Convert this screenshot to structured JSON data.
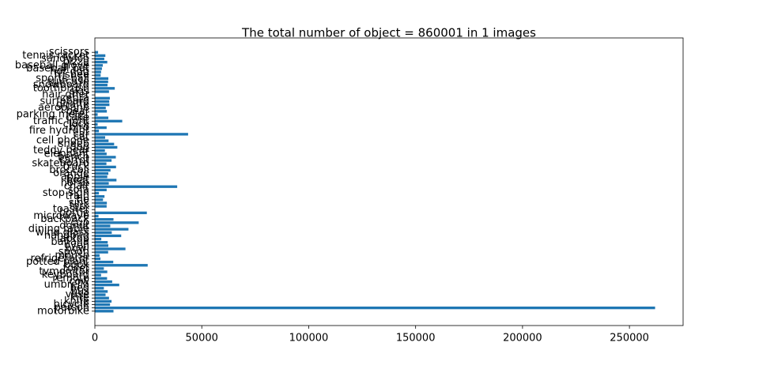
{
  "chart_data": {
    "type": "barh",
    "title": "The total number of object = 860001 in 1 images",
    "color": "#1f77b4",
    "categories": [
      "motorbike",
      "person",
      "bicycle",
      "knife",
      "kite",
      "vase",
      "bus",
      "bed",
      "umbrella",
      "cow",
      "remote",
      "keyboard",
      "tvmonitor",
      "toilet",
      "book",
      "potted plant",
      "refrigerator",
      "mouse",
      "spoon",
      "bowl",
      "oven",
      "banana",
      "laptop",
      "handbag",
      "wine glass",
      "dining table",
      "donut",
      "cup",
      "backpack",
      "microwave",
      "bottle",
      "toaster",
      "fork",
      "sink",
      "tie",
      "train",
      "stop sign",
      "sofa",
      "chair",
      "horse",
      "boat",
      "apple",
      "orange",
      "broccoli",
      "truck",
      "skateboard",
      "carrot",
      "bench",
      "elephant",
      "teddy bear",
      "dog",
      "sheep",
      "cell phone",
      "cat",
      "car",
      "fire hydrant",
      "bird",
      "clock",
      "traffic light",
      "cake",
      "parking meter",
      "bear",
      "aeroplane",
      "giraffe",
      "surfboard",
      "zebra",
      "hair drier",
      "skis",
      "toothbrush",
      "snowboard",
      "suitcase",
      "sports ball",
      "frisbee",
      "hot dog",
      "baseball bat",
      "baseball glove",
      "pizza",
      "sandwich",
      "tennis racket",
      "scissors"
    ],
    "values": [
      8700,
      262000,
      7100,
      7800,
      6600,
      5000,
      6000,
      4200,
      11400,
      8100,
      5700,
      2900,
      5800,
      4200,
      24700,
      8600,
      2600,
      2200,
      6200,
      14300,
      6300,
      6000,
      3000,
      12300,
      7900,
      15700,
      7200,
      20500,
      8700,
      1700,
      24300,
      200,
      5500,
      5600,
      3800,
      4500,
      1900,
      5500,
      38500,
      6500,
      10100,
      5800,
      6300,
      7300,
      9900,
      5400,
      7800,
      9800,
      5500,
      4700,
      10500,
      9000,
      6400,
      4800,
      43600,
      1900,
      5500,
      1300,
      12800,
      6300,
      1300,
      5600,
      5100,
      6800,
      6700,
      7000,
      200,
      6600,
      9300,
      5900,
      6200,
      6300,
      2700,
      2900,
      3300,
      3700,
      5800,
      4400,
      4900,
      1500
    ],
    "xlim": [
      0,
      275100
    ],
    "xticks": [
      0,
      50000,
      100000,
      150000,
      200000,
      250000
    ]
  }
}
